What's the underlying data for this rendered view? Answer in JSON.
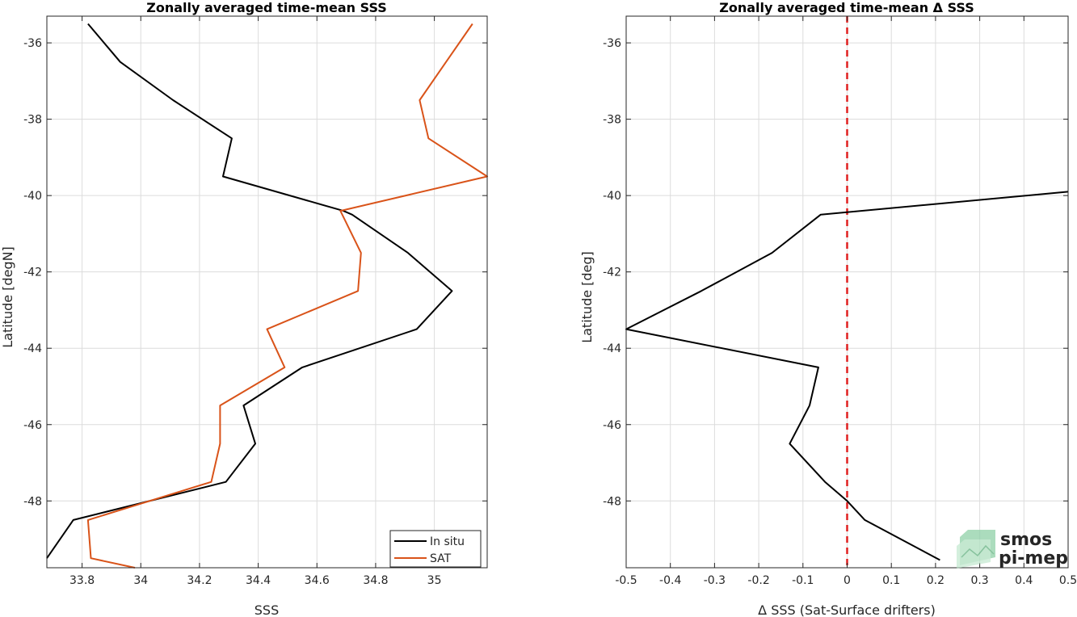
{
  "chart_data": [
    {
      "type": "line",
      "title": "Zonally averaged time-mean SSS",
      "xlabel": "SSS",
      "ylabel": "Latitude [degN]",
      "xlim": [
        33.68,
        35.18
      ],
      "ylim": [
        -49.75,
        -35.3
      ],
      "xticks": [
        33.8,
        34,
        34.2,
        34.4,
        34.6,
        34.8,
        35
      ],
      "xtick_labels": [
        "33.8",
        "34",
        "34.2",
        "34.4",
        "34.6",
        "34.8",
        "35"
      ],
      "yticks": [
        -36,
        -38,
        -40,
        -42,
        -44,
        -46,
        -48
      ],
      "ytick_labels": [
        "-36",
        "-38",
        "-40",
        "-42",
        "-44",
        "-46",
        "-48"
      ],
      "grid": true,
      "legend_position": "bottom-right",
      "series": [
        {
          "name": "In situ",
          "color": "#000000",
          "x": [
            33.82,
            33.93,
            34.11,
            34.31,
            34.28,
            34.69,
            34.72,
            34.91,
            35.06,
            34.94,
            34.55,
            34.35,
            34.39,
            34.29,
            33.77,
            33.68
          ],
          "y": [
            -35.5,
            -36.5,
            -37.5,
            -38.5,
            -39.5,
            -40.4,
            -40.5,
            -41.5,
            -42.5,
            -43.5,
            -44.5,
            -45.5,
            -46.5,
            -47.5,
            -48.5,
            -49.5
          ]
        },
        {
          "name": "SAT",
          "color": "#D95319",
          "x": [
            35.13,
            35.04,
            34.95,
            34.98,
            35.18,
            34.68,
            34.75,
            34.74,
            34.43,
            34.49,
            34.27,
            34.27,
            34.24,
            33.82,
            33.83,
            33.98
          ],
          "y": [
            -35.5,
            -36.5,
            -37.5,
            -38.5,
            -39.5,
            -40.4,
            -41.5,
            -42.5,
            -43.5,
            -44.5,
            -45.5,
            -46.5,
            -47.5,
            -48.5,
            -49.5,
            -49.75
          ]
        }
      ]
    },
    {
      "type": "line",
      "title": "Zonally averaged time-mean Δ SSS",
      "xlabel": "Δ SSS (Sat-Surface drifters)",
      "ylabel": "Latitude [deg]",
      "xlim": [
        -0.5,
        0.5
      ],
      "ylim": [
        -49.75,
        -35.3
      ],
      "xticks": [
        -0.5,
        -0.4,
        -0.3,
        -0.2,
        -0.1,
        0,
        0.1,
        0.2,
        0.3,
        0.4,
        0.5
      ],
      "xtick_labels": [
        "-0.5",
        "-0.4",
        "-0.3",
        "-0.2",
        "-0.1",
        "0",
        "0.1",
        "0.2",
        "0.3",
        "0.4",
        "0.5"
      ],
      "yticks": [
        -36,
        -38,
        -40,
        -42,
        -44,
        -46,
        -48
      ],
      "ytick_labels": [
        "-36",
        "-38",
        "-40",
        "-42",
        "-44",
        "-46",
        "-48"
      ],
      "grid": true,
      "reference_line": {
        "x": 0,
        "color": "#E02020",
        "style": "dashed"
      },
      "series": [
        {
          "color": "#000000",
          "x": [
            0.5,
            -0.06,
            -0.17,
            -0.33,
            -0.5,
            -0.065,
            -0.085,
            -0.13,
            -0.05,
            0.0,
            0.04,
            0.21
          ],
          "y": [
            -39.9,
            -40.5,
            -41.5,
            -42.5,
            -43.5,
            -44.5,
            -45.5,
            -46.5,
            -47.5,
            -48.0,
            -48.5,
            -49.55
          ]
        }
      ]
    }
  ],
  "watermark": {
    "lines": [
      "smos",
      "pi-mep"
    ],
    "color": "#6dbf8e"
  }
}
